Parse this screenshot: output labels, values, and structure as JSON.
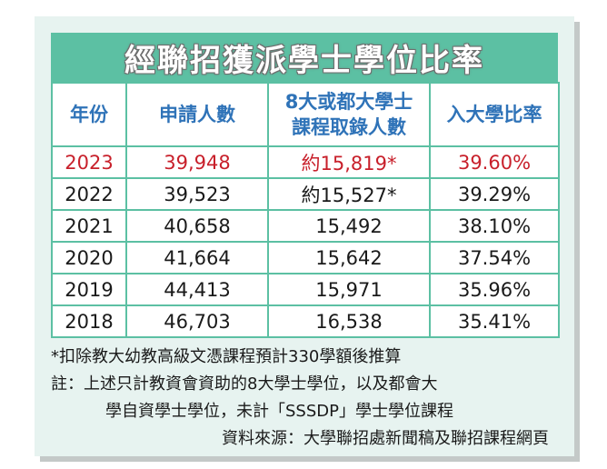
{
  "title": "經聯招獲派學士學位比率",
  "chart_data": {
    "type": "table",
    "title": "經聯招獲派學士學位比率",
    "columns": [
      "年份",
      "申請人數",
      "8大或都大學士課程取錄人數",
      "入大學比率"
    ],
    "rows": [
      {
        "year": "2023",
        "applicants": "39,948",
        "admitted": "約15,819*",
        "rate": "39.60%",
        "highlight": true
      },
      {
        "year": "2022",
        "applicants": "39,523",
        "admitted": "約15,527*",
        "rate": "39.29%",
        "highlight": false
      },
      {
        "year": "2021",
        "applicants": "40,658",
        "admitted": "15,492",
        "rate": "38.10%",
        "highlight": false
      },
      {
        "year": "2020",
        "applicants": "41,664",
        "admitted": "15,642",
        "rate": "37.54%",
        "highlight": false
      },
      {
        "year": "2019",
        "applicants": "44,413",
        "admitted": "15,971",
        "rate": "35.96%",
        "highlight": false
      },
      {
        "year": "2018",
        "applicants": "46,703",
        "admitted": "16,538",
        "rate": "35.41%",
        "highlight": false
      }
    ]
  },
  "headers": {
    "year": "年份",
    "applicants": "申請人數",
    "admitted_line1": "8大或都大學士",
    "admitted_line2": "課程取錄人數",
    "rate": "入大學比率"
  },
  "notes": {
    "footnote": "*扣除教大幼教高級文憑課程預計330學額後推算",
    "remark_line1": "註：上述只計教資會資助的8大學士學位，以及都會大",
    "remark_line2": "學自資學士學位，未計「SSSDP」學士學位課程",
    "source": "資料來源：大學聯招處新聞稿及聯招課程網頁"
  },
  "colors": {
    "accent": "#5cc0a3",
    "header_text": "#2f73b8",
    "highlight_text": "#c8202b",
    "background": "#e7f3f0"
  }
}
